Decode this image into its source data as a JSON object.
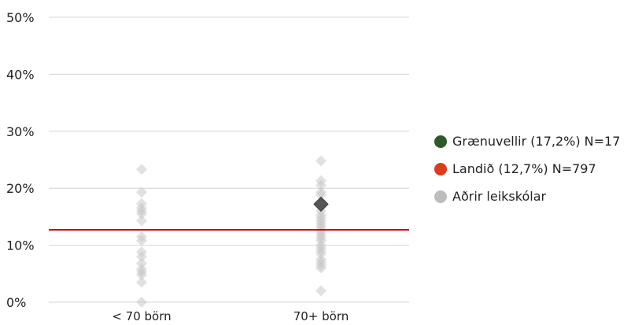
{
  "chart_data": {
    "type": "scatter",
    "title": "",
    "xlabel": "",
    "ylabel": "",
    "categories": [
      "< 70 börn",
      "70+ börn"
    ],
    "ylim": [
      0,
      50
    ],
    "yticks": [
      {
        "value": 0,
        "label": "0%"
      },
      {
        "value": 10,
        "label": "10%"
      },
      {
        "value": 20,
        "label": "20%"
      },
      {
        "value": 30,
        "label": "30%"
      },
      {
        "value": 40,
        "label": "40%"
      },
      {
        "value": 50,
        "label": "50%"
      }
    ],
    "grid": true,
    "legend_position": "right",
    "reference_line": {
      "value": 12.7,
      "color": "#cc0000"
    },
    "series": [
      {
        "name": "Aðrir leikskólar",
        "color": "#c8c8c8",
        "marker": "diamond",
        "points": [
          {
            "category": "< 70 börn",
            "y": 23.3
          },
          {
            "category": "< 70 börn",
            "y": 19.3
          },
          {
            "category": "< 70 börn",
            "y": 17.3
          },
          {
            "category": "< 70 börn",
            "y": 16.5
          },
          {
            "category": "< 70 börn",
            "y": 16.0
          },
          {
            "category": "< 70 börn",
            "y": 15.5
          },
          {
            "category": "< 70 börn",
            "y": 14.3
          },
          {
            "category": "< 70 börn",
            "y": 11.5
          },
          {
            "category": "< 70 börn",
            "y": 10.8
          },
          {
            "category": "< 70 börn",
            "y": 8.8
          },
          {
            "category": "< 70 börn",
            "y": 8.0
          },
          {
            "category": "< 70 börn",
            "y": 6.8
          },
          {
            "category": "< 70 börn",
            "y": 5.8
          },
          {
            "category": "< 70 börn",
            "y": 5.3
          },
          {
            "category": "< 70 börn",
            "y": 4.8
          },
          {
            "category": "< 70 börn",
            "y": 3.5
          },
          {
            "category": "< 70 börn",
            "y": 0.0
          },
          {
            "category": "70+ börn",
            "y": 24.8
          },
          {
            "category": "70+ börn",
            "y": 21.3
          },
          {
            "category": "70+ börn",
            "y": 20.5
          },
          {
            "category": "70+ börn",
            "y": 19.3
          },
          {
            "category": "70+ börn",
            "y": 18.8
          },
          {
            "category": "70+ börn",
            "y": 16.8
          },
          {
            "category": "70+ börn",
            "y": 16.0
          },
          {
            "category": "70+ börn",
            "y": 15.3
          },
          {
            "category": "70+ börn",
            "y": 14.8
          },
          {
            "category": "70+ börn",
            "y": 14.3
          },
          {
            "category": "70+ börn",
            "y": 13.8
          },
          {
            "category": "70+ börn",
            "y": 13.3
          },
          {
            "category": "70+ börn",
            "y": 12.8
          },
          {
            "category": "70+ börn",
            "y": 12.3
          },
          {
            "category": "70+ börn",
            "y": 11.8
          },
          {
            "category": "70+ börn",
            "y": 11.3
          },
          {
            "category": "70+ börn",
            "y": 10.8
          },
          {
            "category": "70+ börn",
            "y": 10.0
          },
          {
            "category": "70+ börn",
            "y": 9.5
          },
          {
            "category": "70+ börn",
            "y": 9.0
          },
          {
            "category": "70+ börn",
            "y": 8.5
          },
          {
            "category": "70+ börn",
            "y": 7.5
          },
          {
            "category": "70+ börn",
            "y": 7.0
          },
          {
            "category": "70+ börn",
            "y": 6.5
          },
          {
            "category": "70+ börn",
            "y": 6.0
          },
          {
            "category": "70+ börn",
            "y": 2.0
          }
        ]
      },
      {
        "name": "Grænuvellir",
        "color": "#555555",
        "marker": "diamond",
        "points": [
          {
            "category": "70+ börn",
            "y": 17.2
          }
        ]
      }
    ],
    "legend": [
      {
        "label": "Grænuvellir (17,2%) N=17",
        "color": "#2d5a27"
      },
      {
        "label": "Landið (12,7%) N=797",
        "color": "#dd3b1c"
      },
      {
        "label": "Aðrir leikskólar",
        "color": "#bdbdbd"
      }
    ]
  }
}
